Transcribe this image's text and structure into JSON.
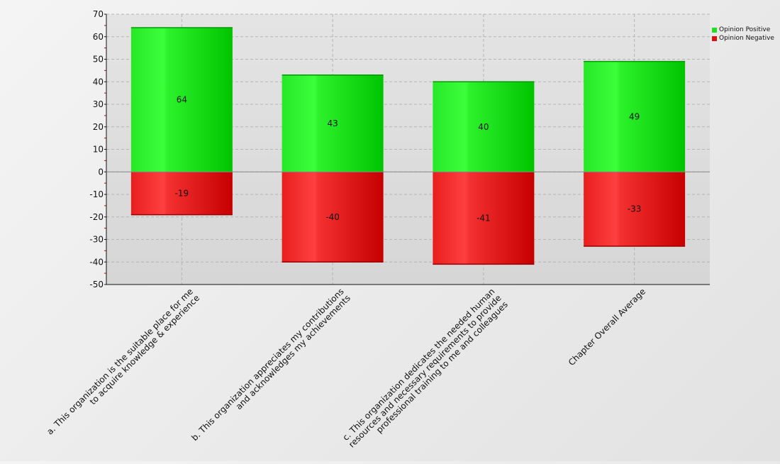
{
  "chart_data": {
    "type": "bar",
    "stacked": true,
    "title": "",
    "xlabel": "",
    "ylabel": "",
    "ylim": [
      -50,
      70
    ],
    "yticks": [
      -50,
      -40,
      -30,
      -20,
      -10,
      0,
      10,
      20,
      30,
      40,
      50,
      60,
      70
    ],
    "grid": true,
    "legend_position": "top-right",
    "categories": [
      [
        "a. This organization is the suitable place for me",
        "to acquire knowledge & experience"
      ],
      [
        "b. This organization appreciates my contributions",
        "and acknowledges my achievements"
      ],
      [
        "c. This organization dedicates the needed human",
        "resources and necessary requirements to provide",
        "professional training to me and colleagues"
      ],
      [
        "Chapter Overall Average"
      ]
    ],
    "series": [
      {
        "name": "Opinion Positive",
        "color": "#22dd22",
        "values": [
          64,
          43,
          40,
          49
        ]
      },
      {
        "name": "Opinion Negative",
        "color": "#dd1111",
        "values": [
          -19,
          -40,
          -41,
          -33
        ]
      }
    ]
  }
}
